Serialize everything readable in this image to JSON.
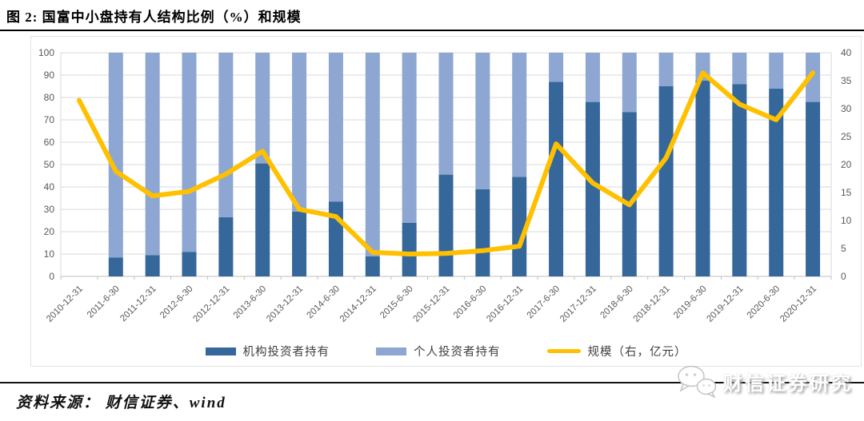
{
  "figure": {
    "title": "图 2:  国富中小盘持有人结构比例（%）和规模",
    "source_label": "资料来源： 财信证券、wind",
    "watermark": "财信证券研究"
  },
  "legend": [
    {
      "label": "机构投资者持有",
      "color": "#35679A",
      "type": "bar"
    },
    {
      "label": "个人投资者持有",
      "color": "#8DA6D2",
      "type": "bar"
    },
    {
      "label": "规模（右，亿元）",
      "color": "#FFC000",
      "type": "line"
    }
  ],
  "chart_data": {
    "type": "bar",
    "subtype": "stacked-bar-with-line",
    "title": "国富中小盘持有人结构比例（%）和规模",
    "categories": [
      "2010-12-31",
      "2011-6-30",
      "2011-12-31",
      "2012-6-30",
      "2012-12-31",
      "2013-6-30",
      "2013-12-31",
      "2014-6-30",
      "2014-12-31",
      "2015-6-30",
      "2015-12-31",
      "2016-6-30",
      "2016-12-31",
      "2017-6-30",
      "2017-12-31",
      "2018-6-30",
      "2018-12-31",
      "2019-6-30",
      "2019-12-31",
      "2020-6-30",
      "2020-12-31"
    ],
    "series": [
      {
        "name": "机构投资者持有",
        "type": "bar",
        "axis": "left",
        "color": "#35679A",
        "values": [
          null,
          8.5,
          9.5,
          11,
          26.5,
          50.5,
          29,
          33.5,
          9,
          24,
          45.5,
          39,
          44.5,
          87,
          78,
          73.5,
          85,
          87.5,
          86,
          84,
          78
        ]
      },
      {
        "name": "个人投资者持有",
        "type": "bar",
        "axis": "left",
        "color": "#8DA6D2",
        "values": [
          null,
          91.5,
          90.5,
          89,
          73.5,
          49.5,
          71,
          66.5,
          91,
          76,
          54.5,
          61,
          55.5,
          13,
          22,
          26.5,
          15,
          12.5,
          14,
          16,
          22
        ]
      },
      {
        "name": "规模（右，亿元）",
        "type": "line",
        "axis": "right",
        "color": "#FFC000",
        "values": [
          31.5,
          18.8,
          14.4,
          15.2,
          18.3,
          22.4,
          12.0,
          10.7,
          4.3,
          4.0,
          4.1,
          4.6,
          5.4,
          23.7,
          16.7,
          12.8,
          21.2,
          36.4,
          30.8,
          28.0,
          36.4
        ]
      }
    ],
    "left_axis": {
      "min": 0,
      "max": 100,
      "step": 10,
      "ticks": [
        "0",
        "10",
        "20",
        "30",
        "40",
        "50",
        "60",
        "70",
        "80",
        "90",
        "100"
      ]
    },
    "right_axis": {
      "min": 0,
      "max": 40,
      "step": 5,
      "ticks": [
        "0",
        "5",
        "10",
        "15",
        "20",
        "25",
        "30",
        "35",
        "40"
      ]
    },
    "grid": true,
    "legend_position": "bottom",
    "gridline_color": "#D9D9D9",
    "axis_text_color": "#595959"
  }
}
